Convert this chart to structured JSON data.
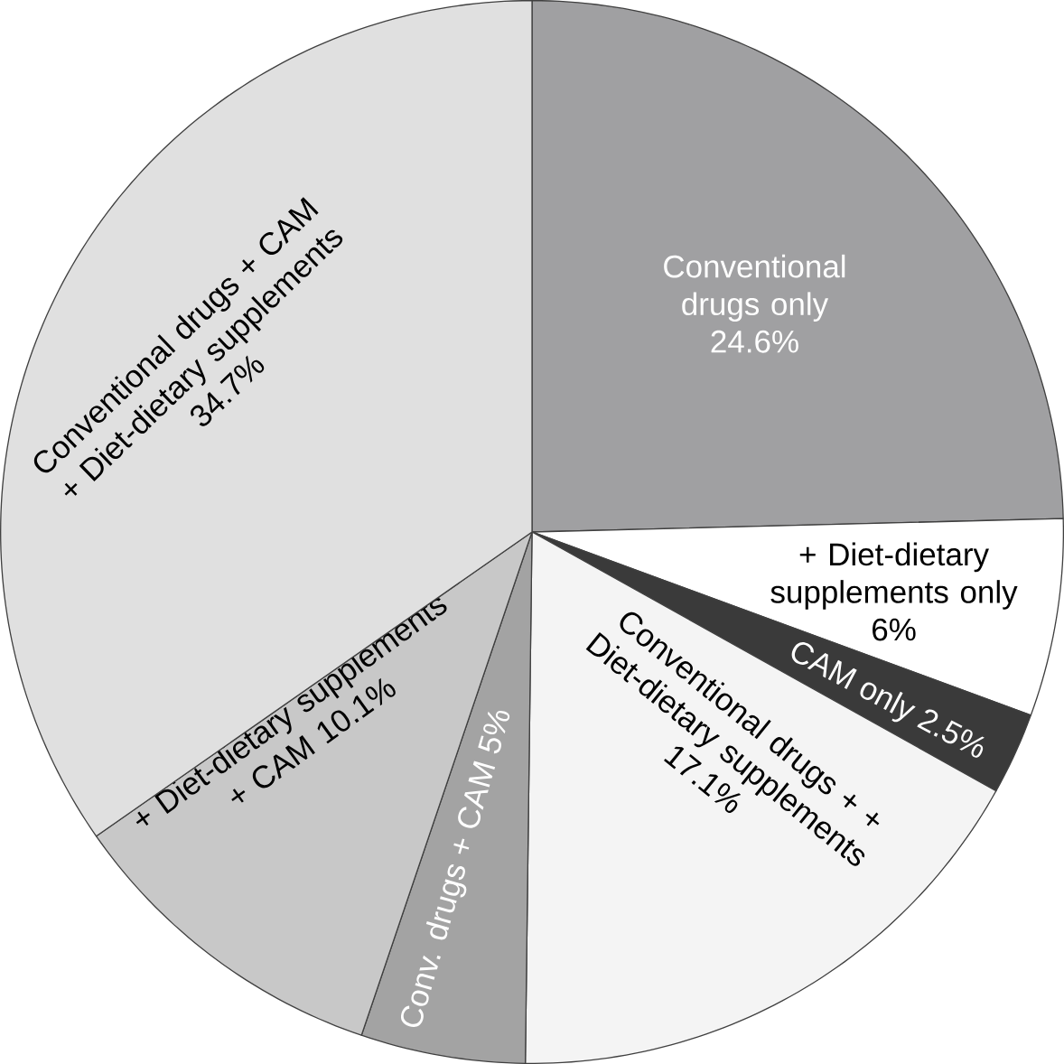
{
  "chart_data": {
    "type": "pie",
    "categories": [
      "Conventional drugs only",
      "+ Diet-dietary supplements only",
      "CAM only",
      "Conventional drugs + + Diet-dietary supplements",
      "Conv. drugs + CAM",
      "+ Diet-dietary supplements + CAM",
      "Conventional drugs + CAM + Diet-dietary supplements"
    ],
    "values": [
      24.6,
      6,
      2.5,
      17.1,
      5,
      10.1,
      34.7
    ],
    "colors": [
      "#a0a0a2",
      "#ffffff",
      "#3a3a3a",
      "#f4f4f4",
      "#a3a3a3",
      "#c8c8c8",
      "#e0e0e0"
    ],
    "value_labels": [
      "24.6%",
      "6%",
      "2.5%",
      "17.1%",
      "5%",
      "10.1%",
      "34.7%"
    ]
  }
}
